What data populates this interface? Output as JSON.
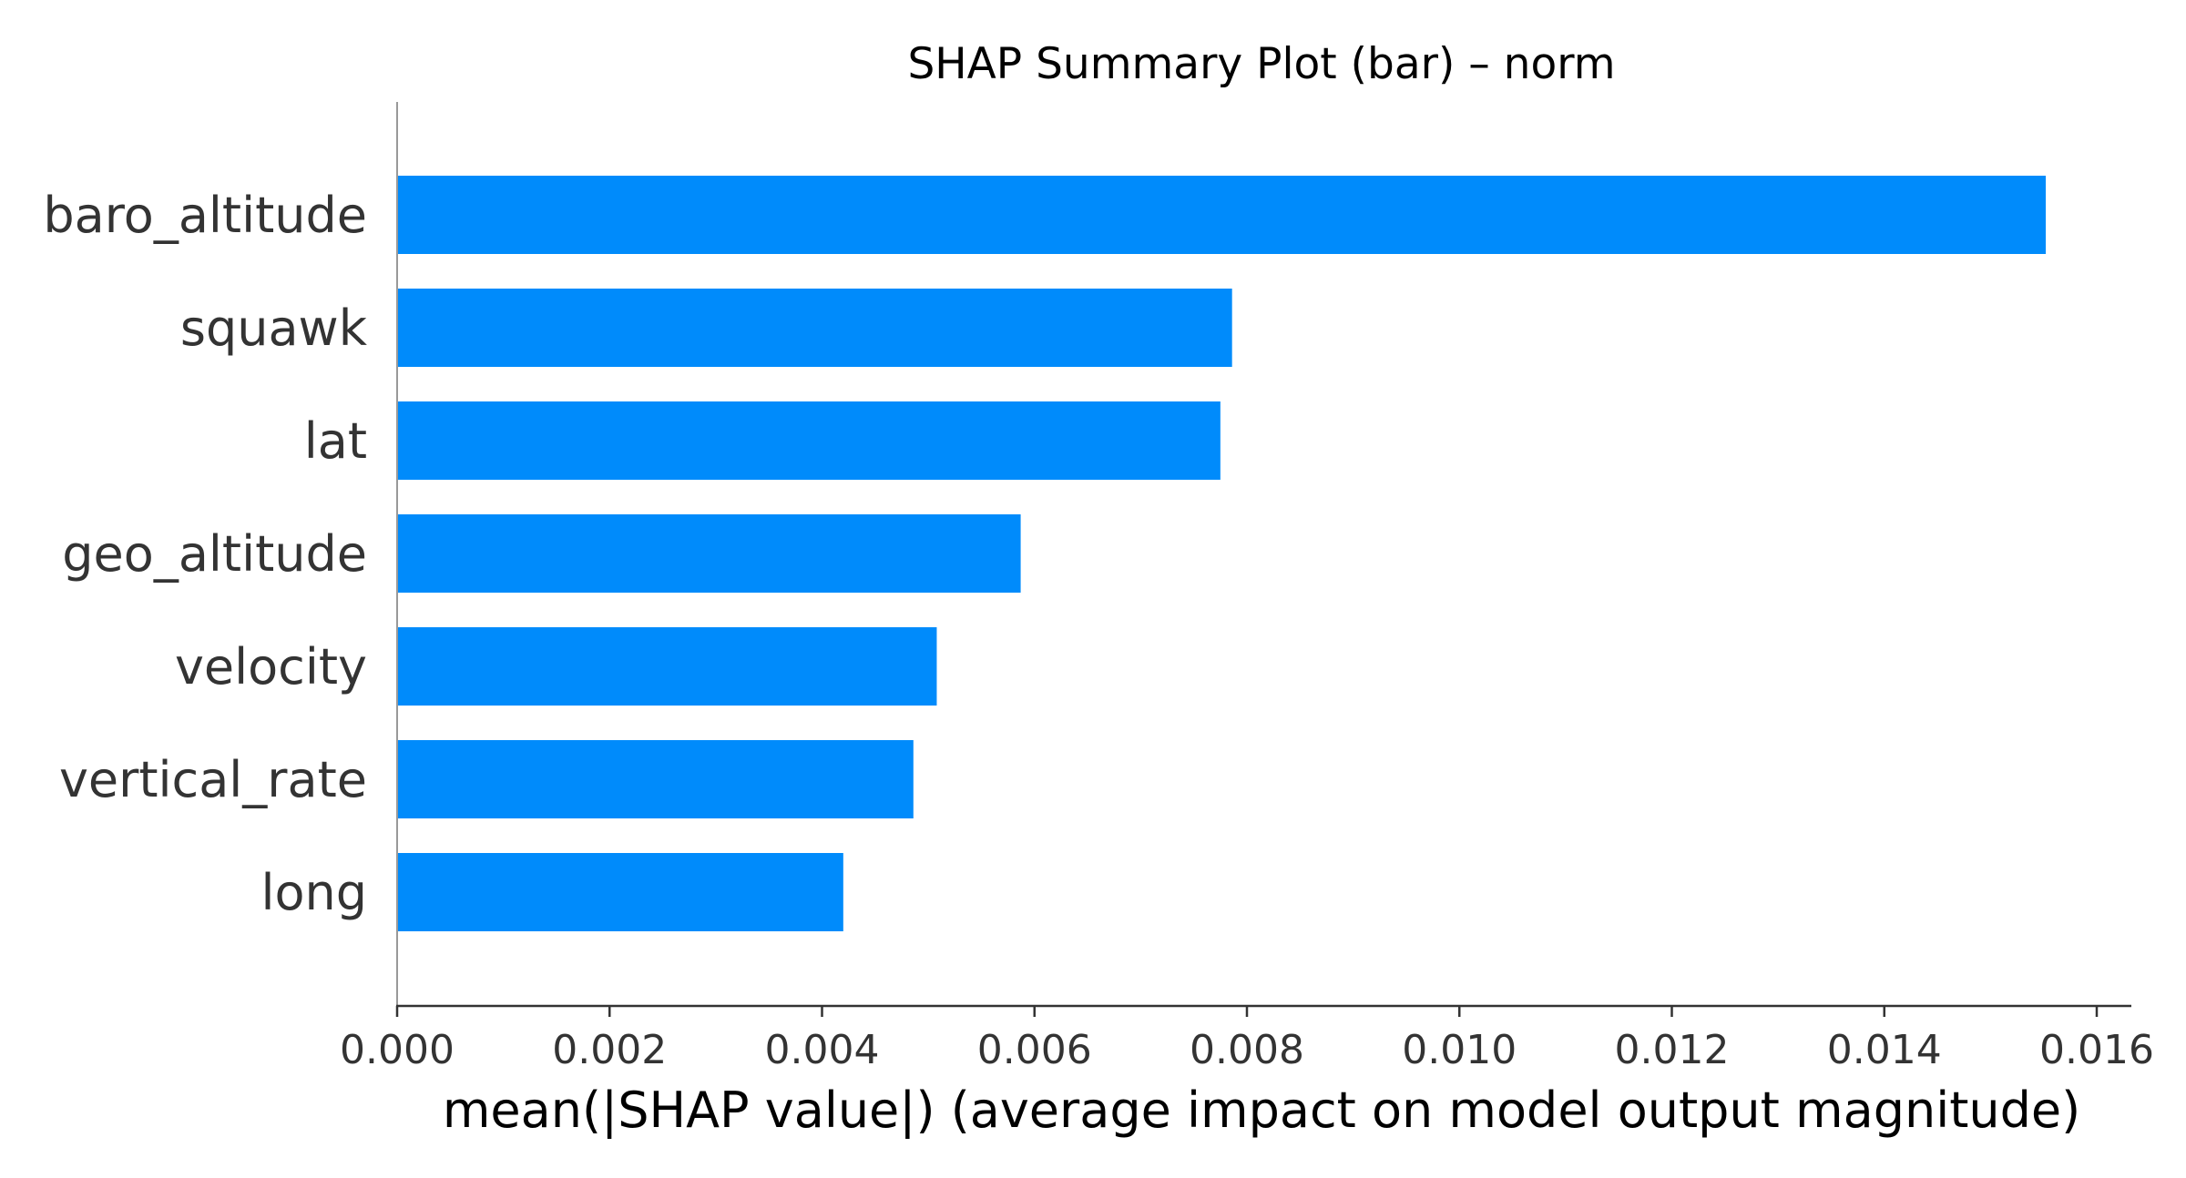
{
  "chart_data": {
    "type": "bar",
    "orientation": "horizontal",
    "title": "SHAP Summary Plot (bar) – norm",
    "xlabel": "mean(|SHAP value|) (average impact on model output magnitude)",
    "ylabel": "",
    "categories": [
      "baro_altitude",
      "squawk",
      "lat",
      "geo_altitude",
      "velocity",
      "vertical_rate",
      "long"
    ],
    "values": [
      0.01552,
      0.00786,
      0.00775,
      0.00587,
      0.00508,
      0.00486,
      0.0042
    ],
    "xlim": [
      0,
      0.0163
    ],
    "xticks": [
      0.0,
      0.002,
      0.004,
      0.006,
      0.008,
      0.01,
      0.012,
      0.014,
      0.016
    ],
    "xtick_labels": [
      "0.000",
      "0.002",
      "0.004",
      "0.006",
      "0.008",
      "0.010",
      "0.012",
      "0.014",
      "0.016"
    ],
    "grid": false,
    "legend": "none",
    "colors": {
      "bar": "#008bfb",
      "axis": "#333333",
      "left_spine": "#999999",
      "text": "#333333",
      "title": "#000000"
    }
  }
}
